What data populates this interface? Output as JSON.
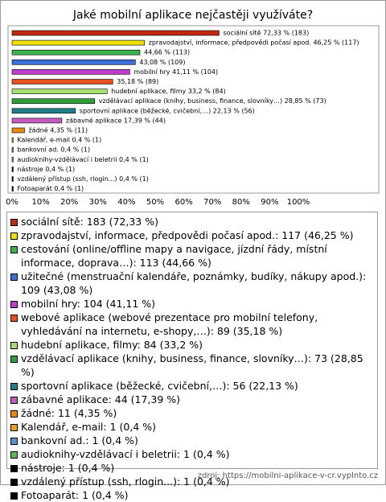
{
  "chart_data": {
    "type": "bar",
    "orientation": "horizontal",
    "title": "Jaké mobilní aplikace nejčastěji využíváte?",
    "values": [
      72.33,
      46.25,
      44.66,
      43.08,
      41.11,
      35.18,
      33.2,
      28.85,
      22.13,
      17.39,
      4.35,
      0.4,
      0.4,
      0.4,
      0.4,
      0.4,
      0.4
    ],
    "value_labels": [
      "sociální sítě 72,33 % (183)",
      "zpravodajství, informace, předpovědi počasí apod. 46,25 % (117)",
      "44,66 % (113)",
      "43,08 % (109)",
      "mobilní hry 41,11 % (104)",
      "35,18 % (89)",
      "hudební aplikace, filmy 33,2 % (84)",
      "vzdělávací aplikace (knihy, business, finance, slovníky…) 28,85 % (73)",
      "sportovní aplikace (běžecké, cvičební,…) 22,13 % (56)",
      "zábavné aplikace 17,39 % (44)",
      "žádné 4,35 % (11)",
      "Kalendář, e-mail 0,4 % (1)",
      "bankovní ad. 0,4 % (1)",
      "audioknihy-vzdělávací i beletrii 0,4 % (1)",
      "nástroje 0,4 % (1)",
      "vzdálený přístup (ssh, rlogin...) 0,4 % (1)",
      "Fotoaparát 0,4 % (1)"
    ],
    "colors": [
      "#c0280f",
      "#f0e000",
      "#3cb34a",
      "#3a6fd8",
      "#c03ccf",
      "#e8501e",
      "#a8e070",
      "#2e9e3a",
      "#1f7f86",
      "#c25cc0",
      "#e88a10",
      "#f0a020",
      "#5b8fd0",
      "#58b858",
      "#000000",
      "#000000",
      "#000000"
    ],
    "legend": [
      "sociální sítě: 183 (72,33 %)",
      "zpravodajství, informace, předpovědi počasí apod.: 117 (46,25 %)",
      "cestování (online/offline mapy a navigace, jízdní řády, místní informace, doprava…): 113 (44,66 %)",
      "užitečné (menstruační kalendáře, poznámky, budíky, nákupy apod.): 109 (43,08 %)",
      "mobilní hry: 104 (41,11 %)",
      "webové aplikace (webové prezentace pro mobilní telefony, vyhledávání na internetu, e-shopy,…): 89 (35,18 %)",
      "hudební aplikace, filmy: 84 (33,2 %)",
      "vzdělávací aplikace (knihy, business, finance, slovníky…): 73 (28,85 %)",
      "sportovní aplikace (běžecké, cvičební,…): 56 (22,13 %)",
      "zábavné aplikace: 44 (17,39 %)",
      "žádné: 11 (4,35 %)",
      "Kalendář, e-mail: 1 (0,4 %)",
      "bankovní ad.: 1 (0,4 %)",
      "audioknihy-vzdělávací i beletrii: 1 (0,4 %)",
      "nástroje: 1 (0,4 %)",
      "vzdálený přístup (ssh, rlogin...): 1 (0,4 %)",
      "Fotoaparát: 1 (0,4 %)"
    ],
    "xlim": [
      0,
      100
    ],
    "xticks": [
      {
        "value": 0,
        "label": "0%"
      },
      {
        "value": 10,
        "label": "10%"
      },
      {
        "value": 20,
        "label": "20%"
      },
      {
        "value": 30,
        "label": "30%"
      },
      {
        "value": 40,
        "label": "40%"
      },
      {
        "value": 50,
        "label": "50%"
      },
      {
        "value": 60,
        "label": "60%"
      },
      {
        "value": 70,
        "label": "70%"
      },
      {
        "value": 80,
        "label": "80%"
      },
      {
        "value": 90,
        "label": "90%"
      },
      {
        "value": 100,
        "label": "100%"
      }
    ],
    "source": "zdroj: https://mobilni-aplikace-v-cr.vyplnto.cz"
  }
}
